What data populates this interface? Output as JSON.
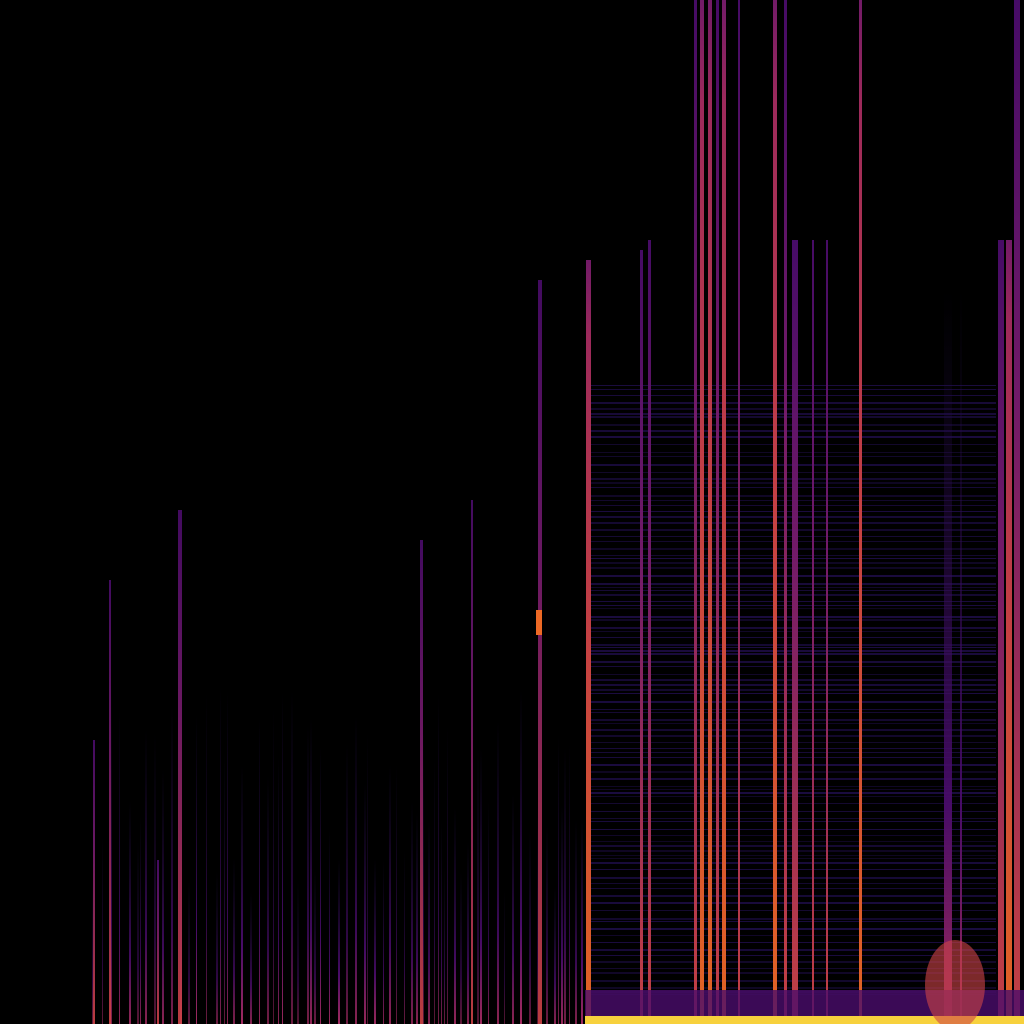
{
  "image": {
    "kind": "spectrogram",
    "colormap": [
      "#000004",
      "#1b0c41",
      "#4a0c6b",
      "#781c6d",
      "#a52c60",
      "#cf4446",
      "#ed6925",
      "#fb9b06",
      "#f7d13d",
      "#fcffa4"
    ],
    "background": "#000000"
  }
}
